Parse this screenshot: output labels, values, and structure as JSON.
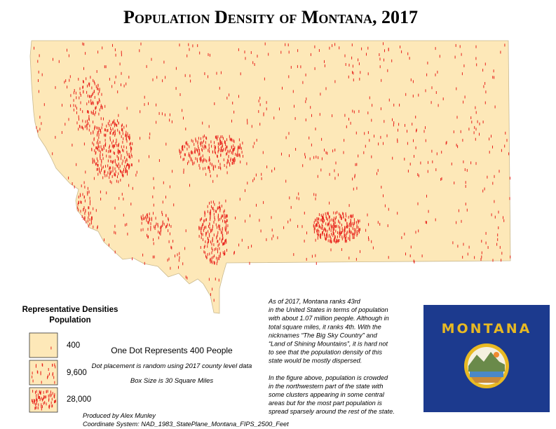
{
  "title": "Population Density of Montana, 2017",
  "legend": {
    "heading": "Representative Densities",
    "subheading": "Population",
    "items": [
      "400",
      "9,600",
      "28,000"
    ]
  },
  "notes": {
    "main": "One Dot Represents 400 People",
    "placement": "Dot placement is random using 2017 county level data",
    "box_size": "Box Size is 30 Square Miles"
  },
  "paragraph": {
    "lines": [
      "As of 2017, Montana ranks 43rd",
      "in the United States in terms of population",
      "with about 1.07 million people. Although in",
      "total square miles, it ranks 4th. With the",
      "nicknames “The Big Sky Country” and",
      "“Land of Shining Mountains”, it is hard not",
      "to see that the population density of this",
      "state would be mostly dispersed.",
      "In the figure above, population is crowded",
      "in the northwestern part of the state with",
      "some clusters appearing in some central",
      "areas but for the most part population is",
      "spread sparsely around the rest of the state."
    ]
  },
  "credits": {
    "author": "Produced by Alex Munley",
    "coordinate_system": "Coordinate System: NAD_1983_StatePlane_Montana_FIPS_2500_Feet"
  },
  "flag": {
    "label": "MONTANA"
  }
}
